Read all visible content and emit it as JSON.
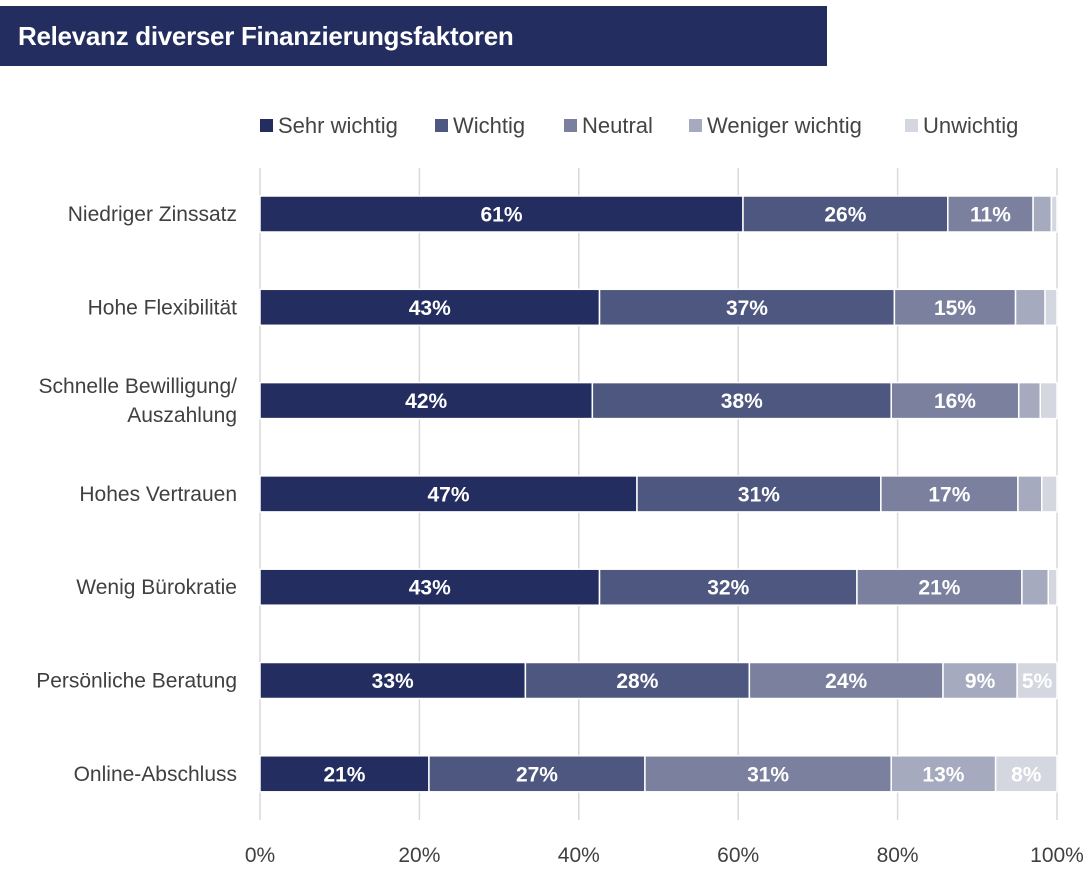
{
  "chart_data": {
    "type": "bar",
    "orientation": "horizontal",
    "stacked": true,
    "title": "Relevanz diverser Finanzierungsfaktoren",
    "xlabel": "",
    "ylabel": "",
    "xlim": [
      0,
      100
    ],
    "grid": true,
    "legend_position": "top",
    "x_ticks": [
      "0%",
      "20%",
      "40%",
      "60%",
      "80%",
      "100%"
    ],
    "x_tick_values": [
      0,
      20,
      40,
      60,
      80,
      100
    ],
    "categories": [
      [
        "Niedriger Zinssatz"
      ],
      [
        "Hohe Flexibilität"
      ],
      [
        "Schnelle Bewilligung/",
        "Auszahlung"
      ],
      [
        "Hohes Vertrauen"
      ],
      [
        "Wenig Bürokratie"
      ],
      [
        "Persönliche Beratung"
      ],
      [
        "Online-Abschluss"
      ]
    ],
    "series": [
      {
        "name": "Sehr wichtig",
        "color": "#232d5f",
        "values": [
          60.6,
          42.6,
          41.7,
          47.3,
          42.6,
          33.3,
          21.2
        ],
        "labels": [
          "61%",
          "43%",
          "42%",
          "47%",
          "43%",
          "33%",
          "21%"
        ]
      },
      {
        "name": "Wichtig",
        "color": "#4e577f",
        "values": [
          25.7,
          37.0,
          37.5,
          30.6,
          32.3,
          28.1,
          27.1
        ],
        "labels": [
          "26%",
          "37%",
          "38%",
          "31%",
          "32%",
          "28%",
          "27%"
        ]
      },
      {
        "name": "Neutral",
        "color": "#7a809e",
        "values": [
          10.7,
          15.2,
          16.0,
          17.2,
          20.7,
          24.3,
          30.9
        ],
        "labels": [
          "11%",
          "15%",
          "16%",
          "17%",
          "21%",
          "24%",
          "31%"
        ]
      },
      {
        "name": "Weniger wichtig",
        "color": "#a6aabe",
        "values": [
          2.3,
          3.7,
          2.7,
          3.0,
          3.3,
          9.3,
          13.1
        ],
        "labels": [
          "",
          "",
          "",
          "",
          "",
          "9%",
          "13%"
        ]
      },
      {
        "name": "Unwichtig",
        "color": "#d4d6e0",
        "values": [
          0.7,
          1.5,
          2.1,
          1.9,
          1.1,
          5.0,
          7.7
        ],
        "labels": [
          "",
          "",
          "",
          "",
          "",
          "5%",
          "8%"
        ]
      }
    ]
  }
}
